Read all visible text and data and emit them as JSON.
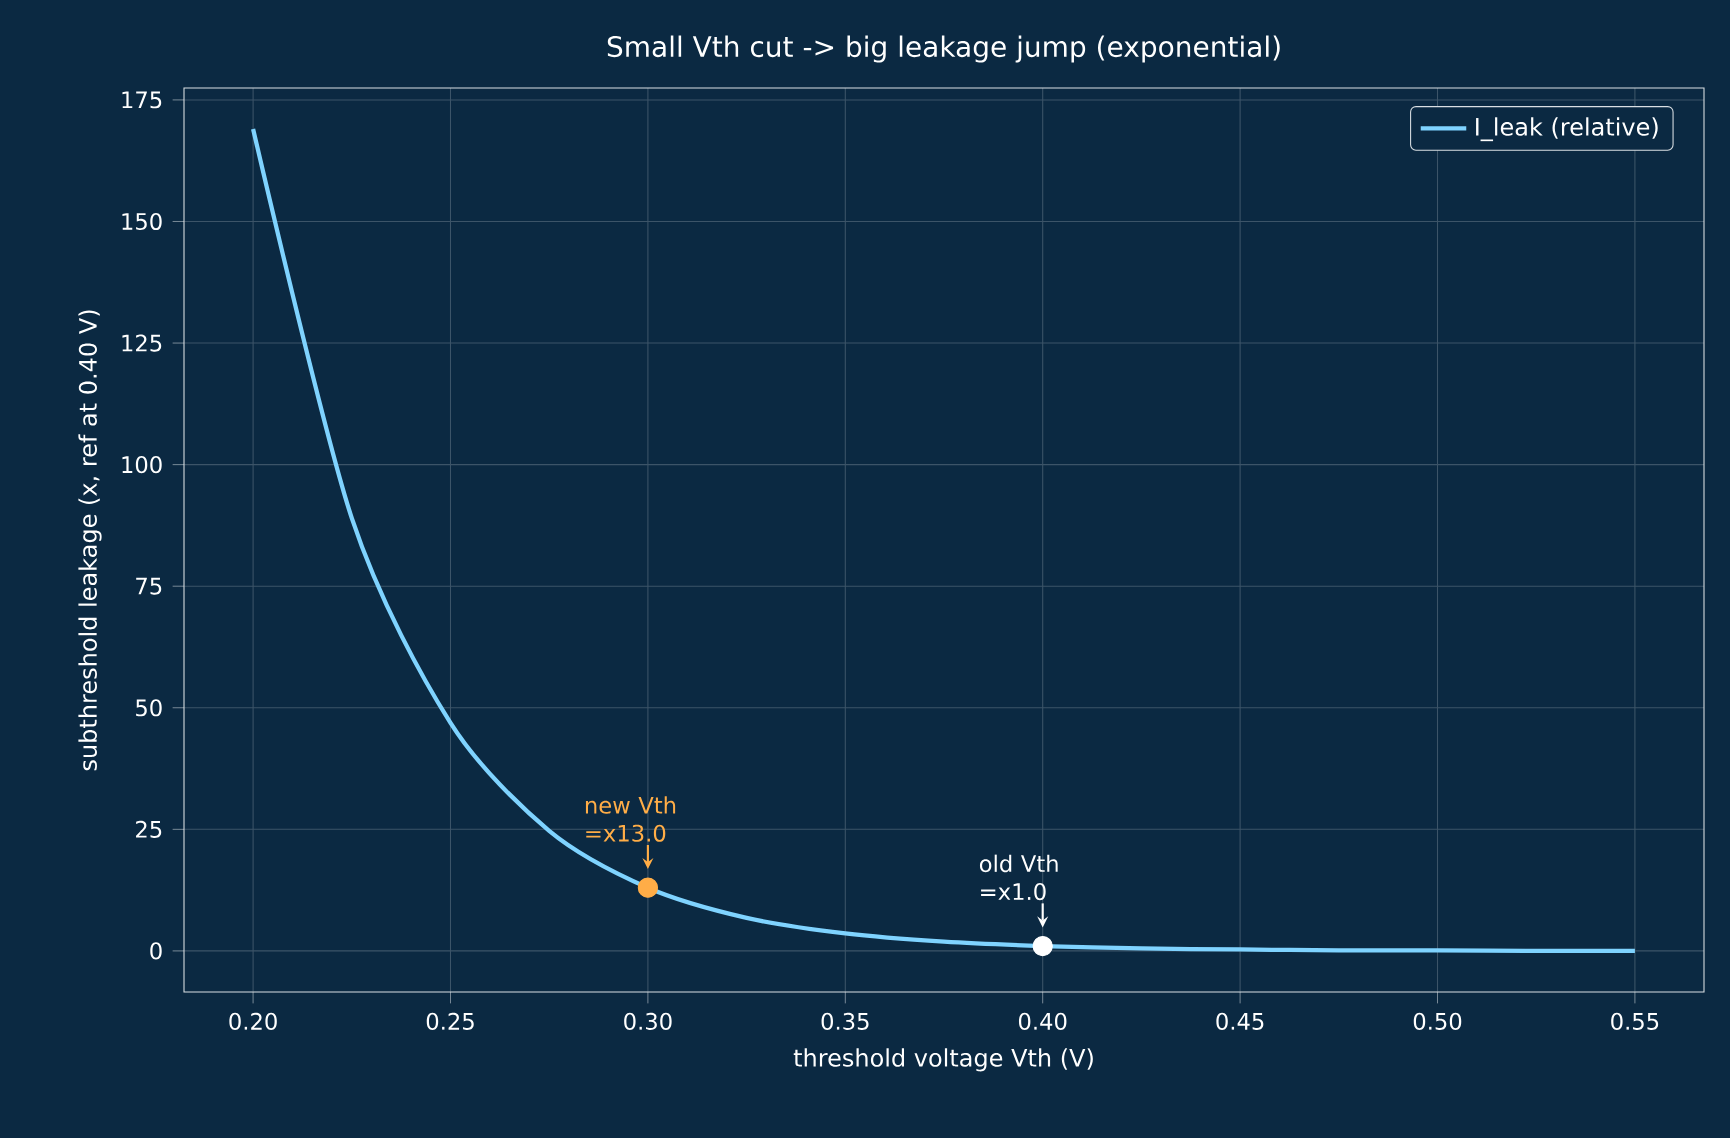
{
  "chart_data": {
    "type": "line",
    "title": "Small Vth cut -> big leakage jump (exponential)",
    "xlabel": "threshold voltage Vth  (V)",
    "ylabel": "subthreshold leakage (x, ref at 0.40 V)",
    "series": [
      {
        "name": "I_leak (relative)",
        "color": "#7fd3ff",
        "x": [
          0.2,
          0.225,
          0.25,
          0.275,
          0.3,
          0.325,
          0.35,
          0.375,
          0.4,
          0.425,
          0.45,
          0.475,
          0.5,
          0.525,
          0.55
        ],
        "values": [
          169,
          89,
          46.9,
          24.7,
          13,
          6.8,
          3.6,
          1.9,
          1,
          0.5,
          0.3,
          0.1,
          0.1,
          0,
          0
        ]
      },
      {
        "type": "scatter",
        "marker": "circle",
        "colors": [
          "#ffad47",
          "#ffffff"
        ],
        "x": [
          0.3,
          0.4
        ],
        "values": [
          13,
          1
        ]
      }
    ],
    "annotations": [
      {
        "text": "new Vth =x13.0",
        "x": 0.3,
        "y": 13
      },
      {
        "text": "old Vth =x1.0",
        "x": 0.4,
        "y": 1
      }
    ],
    "xlim": [
      0.1825,
      0.5675
    ],
    "ylim": [
      -8.45,
      177.45
    ],
    "xticks": [
      {
        "value": 0.2,
        "label": "0.20"
      },
      {
        "value": 0.25,
        "label": "0.25"
      },
      {
        "value": 0.3,
        "label": "0.30"
      },
      {
        "value": 0.35,
        "label": "0.35"
      },
      {
        "value": 0.4,
        "label": "0.40"
      },
      {
        "value": 0.45,
        "label": "0.45"
      },
      {
        "value": 0.5,
        "label": "0.50"
      },
      {
        "value": 0.55,
        "label": "0.55"
      }
    ],
    "yticks": [
      0,
      25,
      50,
      75,
      100,
      125,
      150,
      175
    ],
    "grid": true,
    "legend": "top right"
  }
}
